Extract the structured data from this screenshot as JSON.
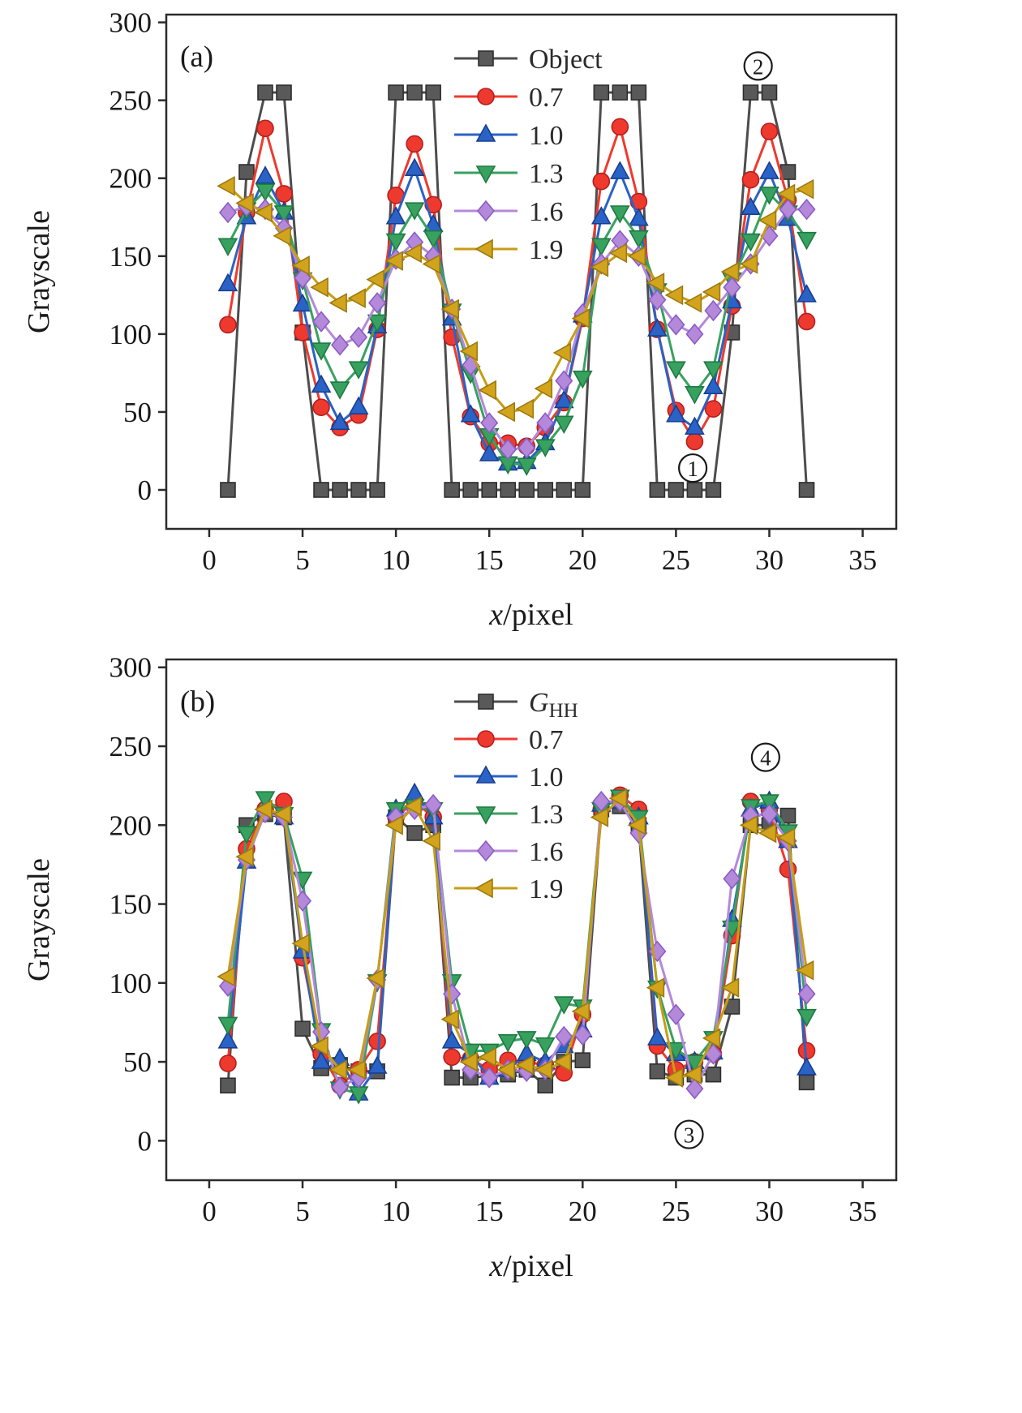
{
  "page": {
    "background": "#ffffff"
  },
  "chart_data": [
    {
      "type": "line",
      "panel_label": "(a)",
      "ylabel": "Grayscale",
      "xlabel_italic": "x",
      "xlabel_plain": "/pixel",
      "xlim": [
        -2.3,
        36.8
      ],
      "ylim": [
        -25,
        305
      ],
      "xticks": [
        0,
        5,
        10,
        15,
        20,
        25,
        30,
        35
      ],
      "yticks": [
        0,
        50,
        100,
        150,
        200,
        250,
        300
      ],
      "grid": false,
      "legend_position": "inside-top-center",
      "x": [
        1,
        2,
        3,
        4,
        5,
        6,
        7,
        8,
        9,
        10,
        11,
        12,
        13,
        14,
        15,
        16,
        17,
        18,
        19,
        20,
        21,
        22,
        23,
        24,
        25,
        26,
        27,
        28,
        29,
        30,
        31,
        32
      ],
      "series": [
        {
          "name": "Object",
          "label": "Object",
          "marker": "square",
          "color": "#595959",
          "edge": "#2e2e2e",
          "line": "#4d4d4d",
          "values": [
            0,
            204,
            255,
            255,
            101,
            0,
            0,
            0,
            0,
            255,
            255,
            255,
            0,
            0,
            0,
            0,
            0,
            0,
            0,
            0,
            255,
            255,
            255,
            0,
            0,
            0,
            0,
            101,
            255,
            255,
            204,
            0
          ]
        },
        {
          "name": "0.7",
          "label": "0.7",
          "marker": "circle",
          "color": "#ee3a2e",
          "edge": "#b51f1f",
          "line": "#ee3a2e",
          "values": [
            106,
            178,
            232,
            190,
            101,
            53,
            40,
            48,
            103,
            189,
            222,
            183,
            98,
            47,
            30,
            30,
            28,
            40,
            56,
            110,
            198,
            233,
            185,
            103,
            51,
            31,
            52,
            118,
            199,
            230,
            186,
            108
          ]
        },
        {
          "name": "1.0",
          "label": "1.0",
          "marker": "triangle-up",
          "color": "#2b62c6",
          "edge": "#173f8f",
          "line": "#2b62c6",
          "values": [
            132,
            175,
            201,
            178,
            119,
            67,
            43,
            53,
            105,
            175,
            206,
            170,
            110,
            48,
            23,
            17,
            18,
            30,
            57,
            112,
            175,
            204,
            174,
            103,
            48,
            40,
            66,
            121,
            181,
            204,
            174,
            125
          ]
        },
        {
          "name": "1.3",
          "label": "1.3",
          "marker": "triangle-down",
          "color": "#38a160",
          "edge": "#1e7a41",
          "line": "#38a160",
          "values": [
            157,
            180,
            192,
            178,
            135,
            90,
            65,
            78,
            108,
            160,
            180,
            162,
            115,
            75,
            35,
            17,
            16,
            28,
            43,
            72,
            157,
            178,
            162,
            128,
            78,
            62,
            78,
            135,
            160,
            190,
            178,
            161
          ]
        },
        {
          "name": "1.6",
          "label": "1.6",
          "marker": "diamond",
          "color": "#b489da",
          "edge": "#8a5cc4",
          "line": "#b489da",
          "values": [
            178,
            182,
            180,
            168,
            136,
            108,
            93,
            98,
            120,
            148,
            159,
            150,
            116,
            80,
            43,
            26,
            27,
            43,
            70,
            113,
            145,
            160,
            150,
            122,
            106,
            100,
            115,
            130,
            145,
            163,
            180,
            180
          ]
        },
        {
          "name": "1.9",
          "label": "1.9",
          "marker": "triangle-left",
          "color": "#d2a41d",
          "edge": "#9c7a0e",
          "line": "#c79d16",
          "values": [
            195,
            184,
            178,
            163,
            144,
            130,
            120,
            123,
            135,
            147,
            152,
            145,
            116,
            89,
            64,
            50,
            52,
            65,
            88,
            110,
            143,
            152,
            150,
            133,
            125,
            120,
            127,
            140,
            145,
            173,
            190,
            193
          ]
        }
      ],
      "annotations": [
        {
          "label": "1",
          "x": 25.9,
          "y": 14
        },
        {
          "label": "2",
          "x": 29.4,
          "y": 272
        }
      ]
    },
    {
      "type": "line",
      "panel_label": "(b)",
      "ylabel": "Grayscale",
      "xlabel_italic": "x",
      "xlabel_plain": "/pixel",
      "xlim": [
        -2.3,
        36.8
      ],
      "ylim": [
        -25,
        305
      ],
      "xticks": [
        0,
        5,
        10,
        15,
        20,
        25,
        30,
        35
      ],
      "yticks": [
        0,
        50,
        100,
        150,
        200,
        250,
        300
      ],
      "grid": false,
      "legend_position": "inside-top-center",
      "x": [
        1,
        2,
        3,
        4,
        5,
        6,
        7,
        8,
        9,
        10,
        11,
        12,
        13,
        14,
        15,
        16,
        17,
        18,
        19,
        20,
        21,
        22,
        23,
        24,
        25,
        26,
        27,
        28,
        29,
        30,
        31,
        32
      ],
      "series": [
        {
          "name": "GHH",
          "label": "G",
          "label_sub": "HH",
          "label_italic": true,
          "marker": "square",
          "color": "#595959",
          "edge": "#2e2e2e",
          "line": "#4d4d4d",
          "values": [
            35,
            200,
            207,
            205,
            71,
            46,
            48,
            44,
            44,
            205,
            195,
            200,
            40,
            40,
            41,
            42,
            45,
            35,
            50,
            51,
            210,
            212,
            200,
            44,
            40,
            42,
            42,
            85,
            200,
            200,
            206,
            37
          ]
        },
        {
          "name": "0.7",
          "label": "0.7",
          "marker": "circle",
          "color": "#ee3a2e",
          "edge": "#b51f1f",
          "line": "#ee3a2e",
          "values": [
            49,
            185,
            210,
            215,
            116,
            55,
            35,
            45,
            63,
            205,
            215,
            205,
            53,
            52,
            45,
            51,
            50,
            48,
            43,
            80,
            210,
            219,
            210,
            60,
            45,
            50,
            55,
            130,
            215,
            210,
            172,
            57
          ]
        },
        {
          "name": "1.0",
          "label": "1.0",
          "marker": "triangle-up",
          "color": "#2b62c6",
          "edge": "#173f8f",
          "line": "#2b62c6",
          "values": [
            63,
            177,
            210,
            205,
            120,
            50,
            52,
            30,
            47,
            210,
            220,
            205,
            63,
            55,
            40,
            45,
            55,
            50,
            60,
            70,
            213,
            215,
            205,
            65,
            55,
            50,
            56,
            140,
            210,
            215,
            190,
            46
          ]
        },
        {
          "name": "1.3",
          "label": "1.3",
          "marker": "triangle-down",
          "color": "#38a160",
          "edge": "#1e7a41",
          "line": "#38a160",
          "values": [
            74,
            195,
            217,
            207,
            166,
            70,
            33,
            30,
            101,
            210,
            212,
            210,
            101,
            57,
            57,
            63,
            65,
            61,
            87,
            85,
            210,
            218,
            205,
            97,
            58,
            50,
            65,
            135,
            212,
            215,
            196,
            79
          ]
        },
        {
          "name": "1.6",
          "label": "1.6",
          "marker": "diamond",
          "color": "#b489da",
          "edge": "#8a5cc4",
          "line": "#b489da",
          "values": [
            98,
            178,
            208,
            205,
            152,
            69,
            34,
            40,
            102,
            205,
            210,
            213,
            93,
            45,
            40,
            45,
            44,
            45,
            66,
            67,
            215,
            215,
            195,
            120,
            80,
            33,
            55,
            166,
            206,
            207,
            190,
            93
          ]
        },
        {
          "name": "1.9",
          "label": "1.9",
          "marker": "triangle-left",
          "color": "#d2a41d",
          "edge": "#9c7a0e",
          "line": "#c79d16",
          "values": [
            104,
            180,
            210,
            207,
            125,
            60,
            45,
            45,
            103,
            200,
            212,
            190,
            77,
            50,
            53,
            45,
            48,
            45,
            50,
            82,
            205,
            217,
            200,
            97,
            40,
            42,
            65,
            97,
            200,
            195,
            192,
            108
          ]
        }
      ],
      "annotations": [
        {
          "label": "3",
          "x": 25.7,
          "y": 4
        },
        {
          "label": "4",
          "x": 29.8,
          "y": 243
        }
      ]
    }
  ]
}
